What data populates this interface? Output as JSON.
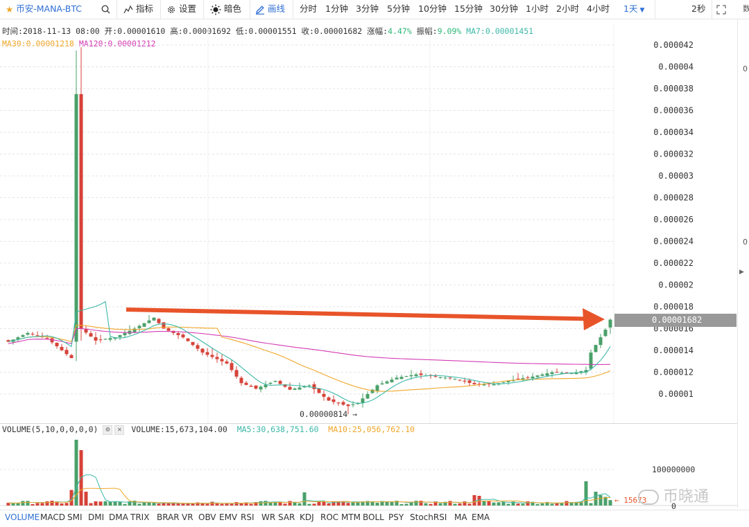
{
  "toolbar": {
    "symbol": "币安-MANA-BTC",
    "indicators_label": "指标",
    "settings_label": "设置",
    "theme_label": "暗色",
    "draw_label": "画线",
    "periods": [
      "分时",
      "1分钟",
      "3分钟",
      "5分钟",
      "10分钟",
      "15分钟",
      "30分钟",
      "1小时",
      "2小时",
      "4小时"
    ],
    "active_period": "1天",
    "refresh": "2秒"
  },
  "ohlc": {
    "time_label": "时间:",
    "time": "2018-11-13 08:00",
    "open_label": "开:",
    "open": "0.00001610",
    "high_label": "高:",
    "high": "0.00001692",
    "low_label": "低:",
    "low": "0.00001551",
    "close_label": "收:",
    "close": "0.00001682",
    "change_label": "涨幅:",
    "change": "4.47%",
    "amplitude_label": "振幅:",
    "amplitude": "9.09%",
    "ma7_label": "MA7:",
    "ma7": "0.00001451",
    "ma30_label": "MA30:",
    "ma30": "0.00001218",
    "ma120_label": "MA120:",
    "ma120": "0.00001212"
  },
  "price_axis": {
    "ticks": [
      "0.000042",
      "0.00004",
      "0.000038",
      "0.000036",
      "0.000034",
      "0.000032",
      "0.00003",
      "0.000028",
      "0.000026",
      "0.000024",
      "0.000022",
      "0.00002",
      "0.000018",
      "0.000016",
      "0.000014",
      "0.000012",
      "0.00001"
    ],
    "current_price": "0.00001682",
    "min_label": "0.00000814 →"
  },
  "volume": {
    "title": "VOLUME(5,10,0,0,0,0)",
    "volume_label": "VOLUME:",
    "volume": "15,673,104.00",
    "ma5_label": "MA5:",
    "ma5": "30,638,751.60",
    "ma10_label": "MA10:",
    "ma10": "25,056,762.10",
    "tick": "100000000",
    "zero": "0",
    "last_label": "← 15673"
  },
  "indicator_tabs": [
    "VOLUME",
    "MACD",
    "SMI",
    "DMI",
    "DMA",
    "TRIX",
    "BRAR",
    "VR",
    "OBV",
    "EMV",
    "RSI",
    "WR",
    "SAR",
    "KDJ",
    "ROC",
    "MTM",
    "BOLL",
    "PSY",
    "StochRSI",
    "MA",
    "EMA"
  ],
  "active_indicator": "VOLUME",
  "watermark": "币晓通",
  "edge_texts": [
    "数",
    "0",
    "0"
  ],
  "colors": {
    "up": "#4aa06a",
    "down": "#d64238",
    "ma7": "#3cb8a8",
    "ma30": "#f0a628",
    "ma120": "#d43bb5",
    "arrow": "#e8542a",
    "accent": "#2f6fd6"
  },
  "chart_data": {
    "type": "candlestick",
    "y_range": [
      8.2e-06,
      4.2e-05
    ],
    "x_count": 125,
    "volume_tick": 100000000,
    "annotation": "arrow from day ~26 at 0.0000175 to latest day at 0.0000169"
  }
}
